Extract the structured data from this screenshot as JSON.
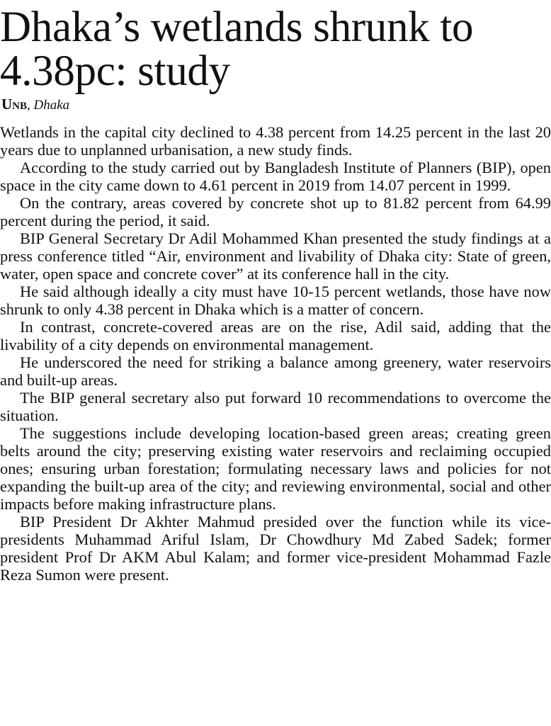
{
  "headline": "Dhaka’s wetlands shrunk to 4.38pc: study",
  "byline": {
    "agency": "Unb",
    "place": "Dhaka"
  },
  "paragraphs": [
    "Wetlands in the capital city declined to 4.38 percent from 14.25 percent in the last 20 years due to unplanned urbanisation, a new study finds.",
    "According to the study carried out by Bangladesh Institute of Planners (BIP), open space in the city came down to 4.61 percent in 2019 from 14.07 percent in 1999.",
    "On the contrary, areas covered by concrete shot up to 81.82 percent from 64.99 percent during the period, it said.",
    "BIP General Secretary Dr Adil Mohammed Khan presented the study findings at a press conference titled “Air, environment and livability of Dhaka city: State of green, water, open space and concrete cover” at its conference hall in the city.",
    "He said although ideally a city must have 10-15 percent wetlands, those have now shrunk to only 4.38 percent in Dhaka which is a matter of concern.",
    "In contrast, concrete-covered areas are on the rise, Adil said, adding that the livability of a city depends on environmental management.",
    "He underscored the need for striking a balance among greenery, water reservoirs and built-up areas.",
    "The BIP general secretary also put forward 10 recommendations to overcome the situation.",
    "The suggestions include developing location-based green areas; creating green belts around the city; preserving existing water reservoirs and reclaiming occupied ones; ensuring urban forestation; formulating necessary laws and policies for not expanding the built-up area of the city; and reviewing environmental, social and other impacts before making infrastructure plans.",
    "BIP President Dr Akhter Mahmud presided over the function while its vice-presidents Muhammad Ariful Islam, Dr Chowdhury Md Zabed Sadek; former president Prof Dr AKM Abul Kalam; and former vice-president Mohammad Fazle Reza Sumon were present."
  ]
}
